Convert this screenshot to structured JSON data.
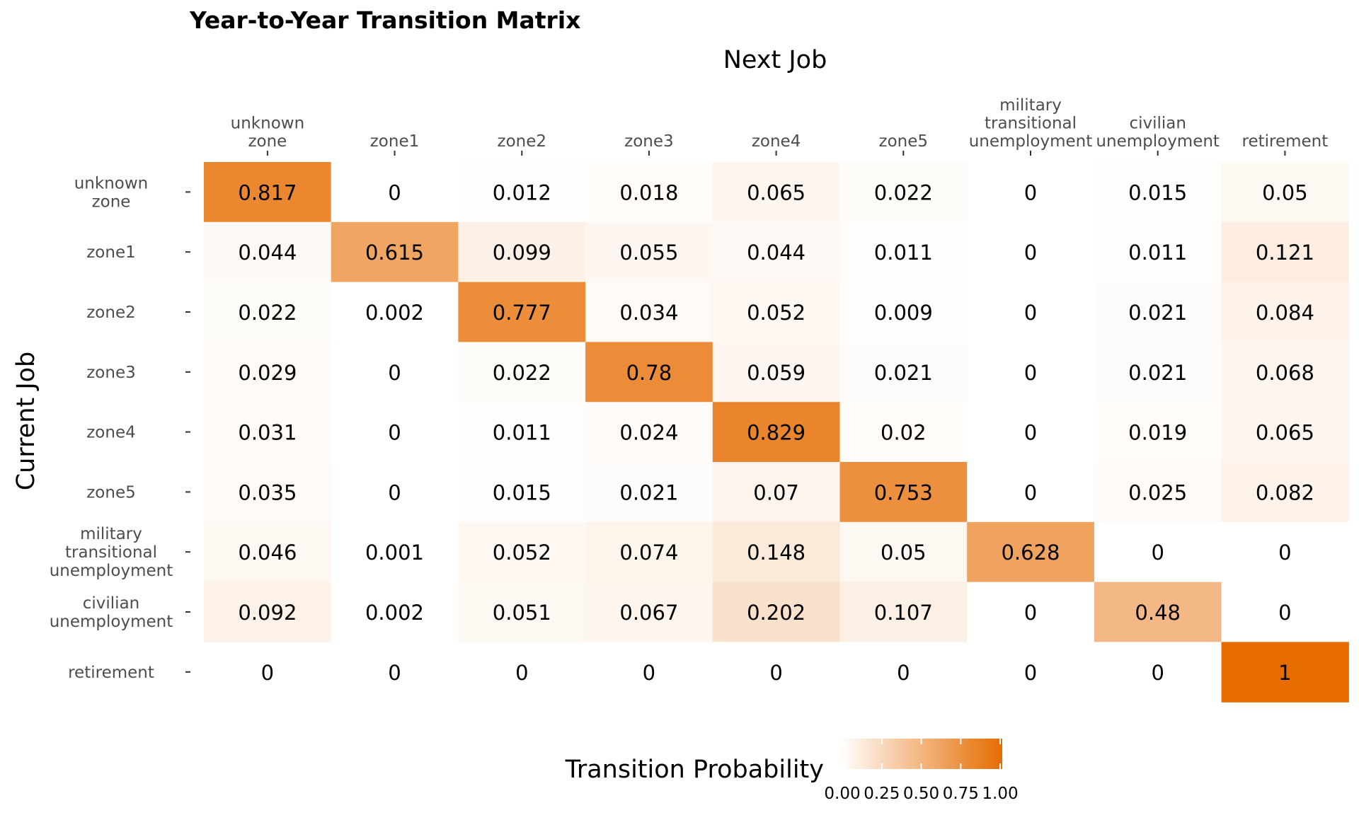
{
  "chart_data": {
    "type": "heatmap",
    "title": "Year-to-Year Transition Matrix",
    "xlabel": "Next Job",
    "ylabel": "Current Job",
    "x_categories": [
      "unknown zone",
      "zone1",
      "zone2",
      "zone3",
      "zone4",
      "zone5",
      "military transitional unemployment",
      "civilian unemployment",
      "retirement"
    ],
    "y_categories": [
      "unknown zone",
      "zone1",
      "zone2",
      "zone3",
      "zone4",
      "zone5",
      "military transitional unemployment",
      "civilian unemployment",
      "retirement"
    ],
    "x_tick_labels": [
      [
        "unknown",
        "zone"
      ],
      [
        "zone1"
      ],
      [
        "zone2"
      ],
      [
        "zone3"
      ],
      [
        "zone4"
      ],
      [
        "zone5"
      ],
      [
        "military",
        "transitional",
        "unemployment"
      ],
      [
        "civilian",
        "unemployment"
      ],
      [
        "retirement"
      ]
    ],
    "y_tick_labels": [
      [
        "unknown",
        "zone"
      ],
      [
        "zone1"
      ],
      [
        "zone2"
      ],
      [
        "zone3"
      ],
      [
        "zone4"
      ],
      [
        "zone5"
      ],
      [
        "military",
        "transitional",
        "unemployment"
      ],
      [
        "civilian",
        "unemployment"
      ],
      [
        "retirement"
      ]
    ],
    "values": [
      [
        "0.817",
        "0",
        "0.012",
        "0.018",
        "0.065",
        "0.022",
        "0",
        "0.015",
        "0.05"
      ],
      [
        "0.044",
        "0.615",
        "0.099",
        "0.055",
        "0.044",
        "0.011",
        "0",
        "0.011",
        "0.121"
      ],
      [
        "0.022",
        "0.002",
        "0.777",
        "0.034",
        "0.052",
        "0.009",
        "0",
        "0.021",
        "0.084"
      ],
      [
        "0.029",
        "0",
        "0.022",
        "0.78",
        "0.059",
        "0.021",
        "0",
        "0.021",
        "0.068"
      ],
      [
        "0.031",
        "0",
        "0.011",
        "0.024",
        "0.829",
        "0.02",
        "0",
        "0.019",
        "0.065"
      ],
      [
        "0.035",
        "0",
        "0.015",
        "0.021",
        "0.07",
        "0.753",
        "0",
        "0.025",
        "0.082"
      ],
      [
        "0.046",
        "0.001",
        "0.052",
        "0.074",
        "0.148",
        "0.05",
        "0.628",
        "0",
        "0"
      ],
      [
        "0.092",
        "0.002",
        "0.051",
        "0.067",
        "0.202",
        "0.107",
        "0",
        "0.48",
        "0"
      ],
      [
        "0",
        "0",
        "0",
        "0",
        "0",
        "0",
        "0",
        "0",
        "1"
      ]
    ],
    "legend": {
      "title": "Transition Probability",
      "ticks": [
        "0.00",
        "0.25",
        "0.50",
        "0.75",
        "1.00"
      ],
      "placement": "bottom"
    },
    "colors": {
      "low": "#ffffff",
      "high": "#e66c00"
    },
    "value_range": [
      0,
      1
    ]
  }
}
